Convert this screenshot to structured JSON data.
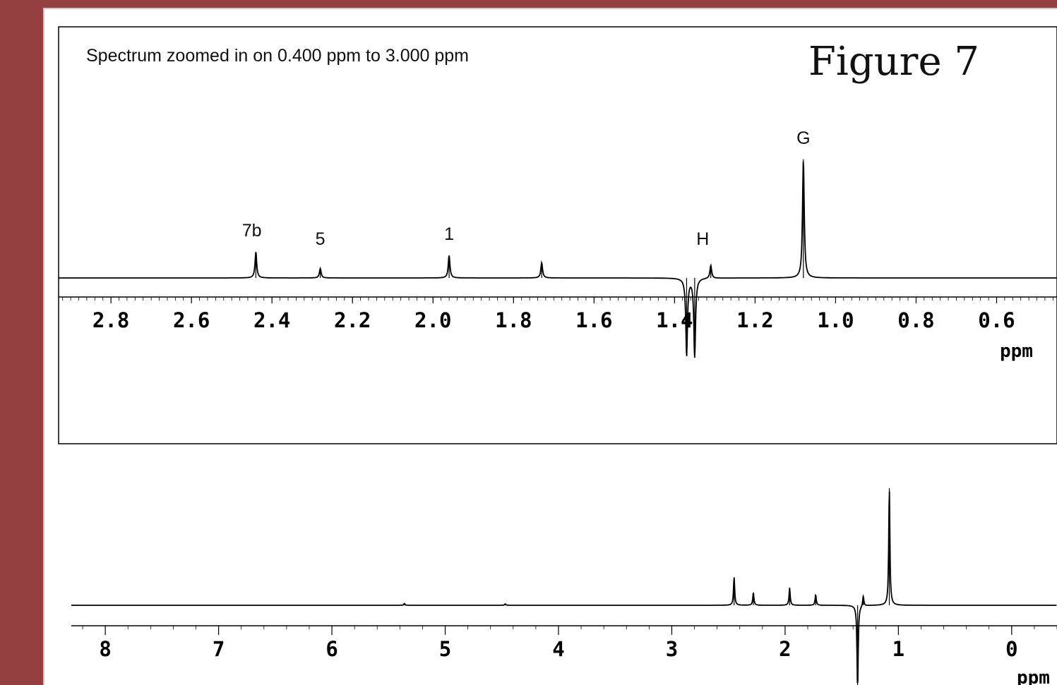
{
  "figure_label": "Figure 7",
  "colors": {
    "background": "#954040",
    "slide": "#ffffff",
    "trace": "#000000"
  },
  "chart_data": [
    {
      "type": "line",
      "title": "Spectrum zoomed in on 0.400 ppm to 3.000 ppm",
      "xlabel": "ppm",
      "xlim": [
        2.93,
        0.45
      ],
      "x_reversed": true,
      "ticks": [
        "2.8",
        "2.6",
        "2.4",
        "2.2",
        "2.0",
        "1.8",
        "1.6",
        "1.4",
        "1.2",
        "1.0",
        "0.8",
        "0.6"
      ],
      "tick_values": [
        2.8,
        2.6,
        2.4,
        2.2,
        2.0,
        1.8,
        1.6,
        1.4,
        1.2,
        1.0,
        0.8,
        0.6
      ],
      "peaks": [
        {
          "ppm": 2.44,
          "height": 0.22
        },
        {
          "ppm": 2.28,
          "height": 0.08
        },
        {
          "ppm": 1.96,
          "height": 0.19
        },
        {
          "ppm": 1.73,
          "height": 0.13
        },
        {
          "ppm": 1.37,
          "height": -0.66
        },
        {
          "ppm": 1.35,
          "height": -0.68
        },
        {
          "ppm": 1.31,
          "height": 0.11
        },
        {
          "ppm": 1.08,
          "height": 1.0
        }
      ],
      "annotations": [
        {
          "label": "7b",
          "ppm": 2.45
        },
        {
          "label": "5",
          "ppm": 2.28
        },
        {
          "label": "1",
          "ppm": 1.96
        },
        {
          "label": "H",
          "ppm": 1.33
        },
        {
          "label": "G",
          "ppm": 1.08
        }
      ]
    },
    {
      "type": "line",
      "xlabel": "ppm",
      "xlim": [
        8.3,
        -0.4
      ],
      "x_reversed": true,
      "ticks": [
        "8",
        "7",
        "6",
        "5",
        "4",
        "3",
        "2",
        "1",
        "0"
      ],
      "tick_values": [
        8,
        7,
        6,
        5,
        4,
        3,
        2,
        1,
        0
      ],
      "peaks": [
        {
          "ppm": 5.36,
          "height": 0.015
        },
        {
          "ppm": 4.47,
          "height": 0.012
        },
        {
          "ppm": 2.45,
          "height": 0.24
        },
        {
          "ppm": 2.28,
          "height": 0.11
        },
        {
          "ppm": 1.96,
          "height": 0.15
        },
        {
          "ppm": 1.73,
          "height": 0.09
        },
        {
          "ppm": 1.36,
          "height": -0.72
        },
        {
          "ppm": 1.31,
          "height": 0.09
        },
        {
          "ppm": 1.08,
          "height": 1.0
        }
      ]
    }
  ]
}
